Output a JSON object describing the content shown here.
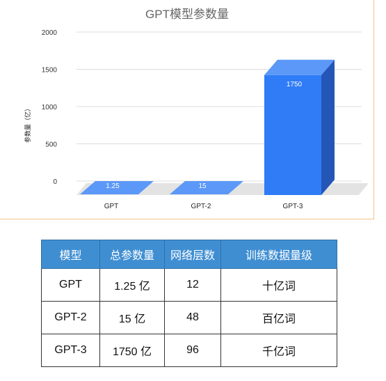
{
  "chart_data": {
    "type": "bar",
    "title": "GPT模型参数量",
    "ylabel": "参数量（亿）",
    "xlabel": "",
    "categories": [
      "GPT",
      "GPT-2",
      "GPT-3"
    ],
    "values": [
      1.25,
      15,
      1750
    ],
    "data_labels": [
      "1.25",
      "15",
      "1750"
    ],
    "ylim": [
      0,
      2000
    ],
    "yticks": [
      0,
      500,
      1000,
      1500,
      2000
    ],
    "grid": true,
    "style": "3d-bar",
    "colors": {
      "bar_front": "#2f7cf6",
      "bar_side": "#2456b8",
      "bar_top": "#5b98f8",
      "floor": "#e3e3e3",
      "grid": "#dddddd",
      "title": "#666666"
    }
  },
  "table": {
    "headers": [
      "模型",
      "总参数量",
      "网络层数",
      "训练数据量级"
    ],
    "rows": [
      [
        "GPT",
        "1.25 亿",
        "12",
        "十亿词"
      ],
      [
        "GPT-2",
        "15 亿",
        "48",
        "百亿词"
      ],
      [
        "GPT-3",
        "1750 亿",
        "96",
        "千亿词"
      ]
    ],
    "colors": {
      "header_bg": "#3f8ed2",
      "header_text": "#ffffff"
    }
  }
}
